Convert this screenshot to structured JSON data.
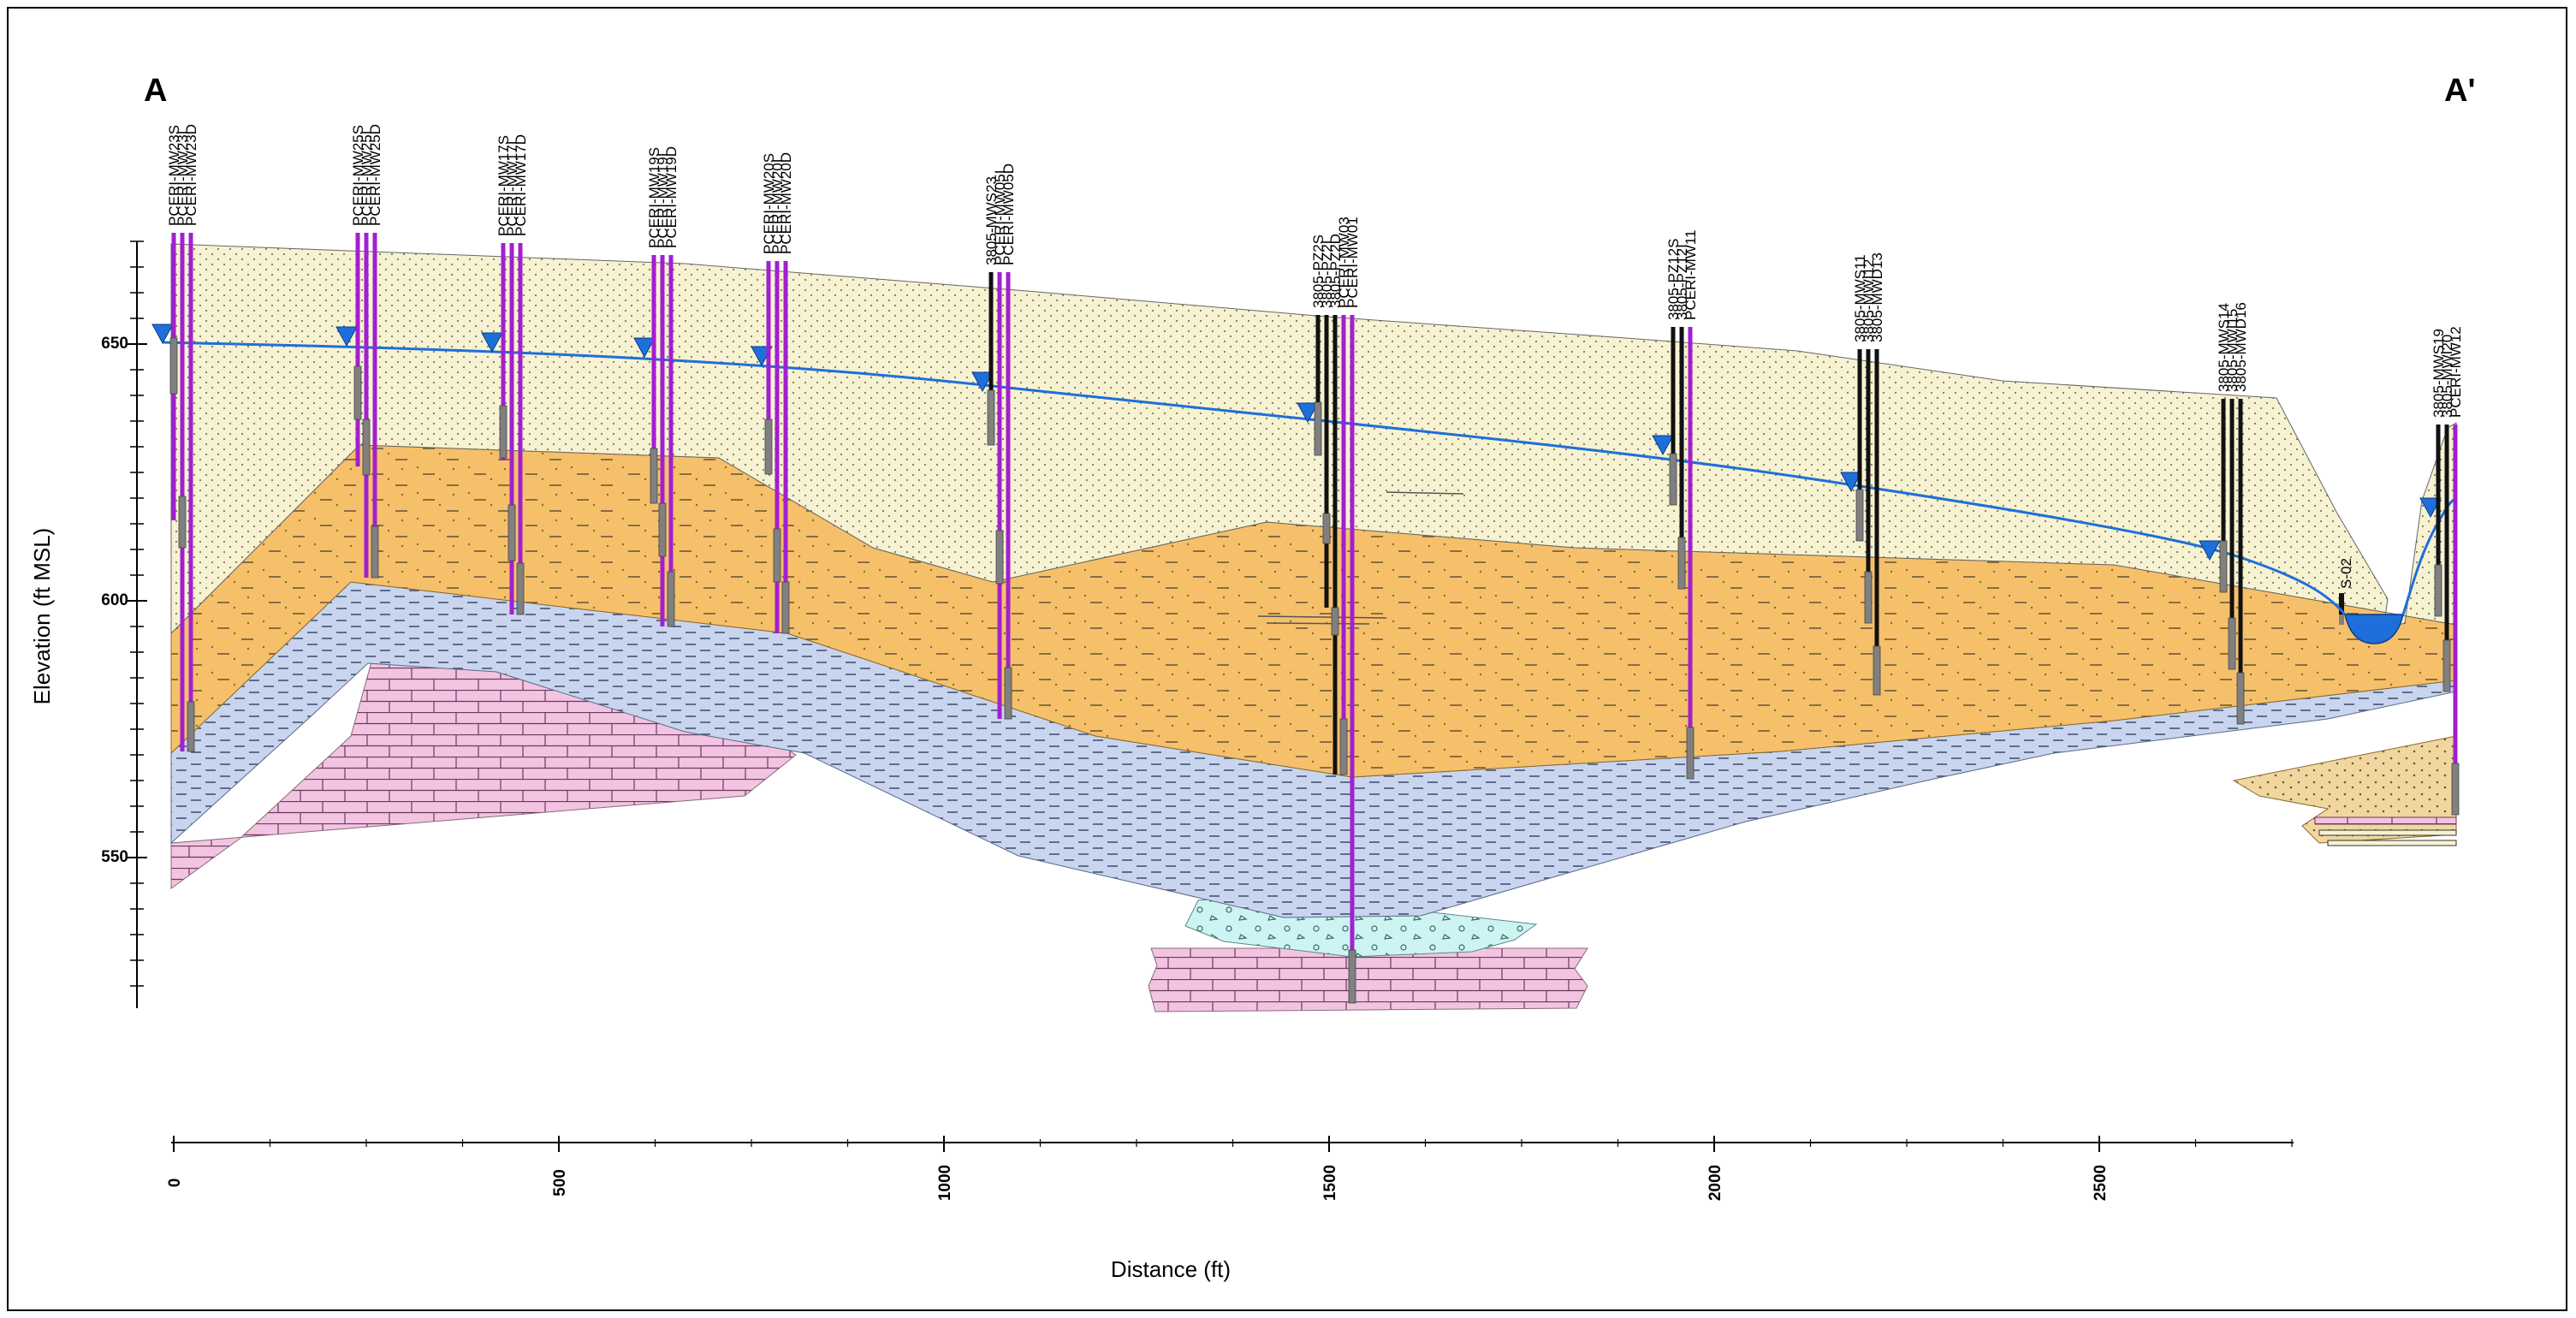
{
  "section": {
    "left_label": "A",
    "right_label": "A'"
  },
  "axes": {
    "y_title": "Elevation (ft MSL)",
    "x_title": "Distance (ft)",
    "y_ticks": [
      "650",
      "600",
      "550"
    ],
    "x_ticks": [
      "0",
      "500",
      "1000",
      "1500",
      "2000",
      "2500"
    ]
  },
  "well_groups": [
    {
      "wells": [
        "PCERI-MW23S",
        "PCERI-MW23I",
        "PCERI-MW23D"
      ]
    },
    {
      "wells": [
        "PCERI-MW25S",
        "PCERI-MW25I",
        "PCERI-MW25D"
      ]
    },
    {
      "wells": [
        "PCERI-MW17S",
        "PCERI-MW17I",
        "PCERI-MW17D"
      ]
    },
    {
      "wells": [
        "PCERI-MW19S",
        "PCERI-MW19I",
        "PCERI-MW19D"
      ]
    },
    {
      "wells": [
        "PCERI-MW20S",
        "PCERI-MW20I",
        "PCERI-MW20D"
      ]
    },
    {
      "wells": [
        "3805-MWS23",
        "PCERI-MW05I",
        "PCERI-MW05D"
      ]
    },
    {
      "wells": [
        "3805-PZ2S",
        "3805-PZ2I",
        "3805-PZ2D",
        "PCERI-MW03",
        "PCERI-MW01"
      ]
    },
    {
      "wells": [
        "3805-PZ12S",
        "3805-PZ12I",
        "PCERI-MW11"
      ]
    },
    {
      "wells": [
        "3805-MWS11",
        "3805-MWI12",
        "3805-MWD13"
      ]
    },
    {
      "wells": [
        "3805-MWS14",
        "3805-MWI15",
        "3805-MWD16"
      ]
    },
    {
      "wells": [
        "3805-MWS19",
        "3805-MWI20",
        "PCERI-MW12"
      ]
    }
  ],
  "stream_label": "S-02",
  "colors": {
    "sand": "#f7f2d2",
    "silty_sand": "#f6c06a",
    "clay": "#c9d5ee",
    "limestone": "#f2c4e2",
    "gravel": "#cdf4f2",
    "water_table": "#1e6fd9",
    "well_purple": "#a21fd0",
    "well_black": "#111111",
    "screen": "#808080"
  }
}
